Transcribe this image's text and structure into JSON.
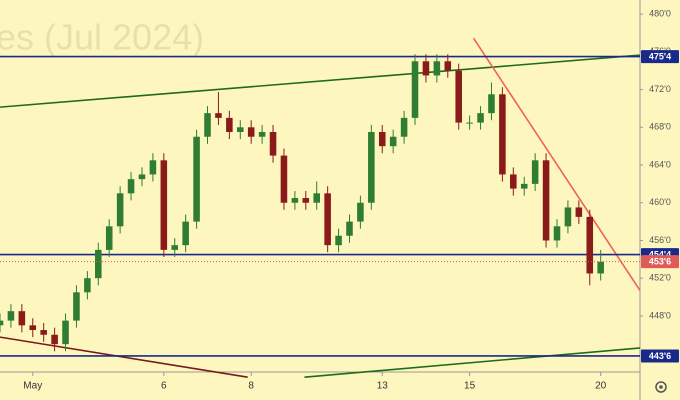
{
  "chart_data": {
    "type": "candlestick",
    "watermark": "es (Jul 2024)",
    "up_color": "#2e7d32",
    "down_color": "#8b1a1a",
    "x": [
      -0.75,
      -0.5,
      -0.25,
      0,
      0.25,
      0.5,
      0.75,
      1,
      1.25,
      1.5,
      1.75,
      2,
      2.25,
      2.5,
      2.75,
      3,
      3.25,
      3.5,
      3.75,
      4,
      4.25,
      4.5,
      4.75,
      5,
      5.25,
      5.5,
      5.75,
      6,
      6.25,
      6.5,
      6.75,
      7,
      7.25,
      7.5,
      7.75,
      8,
      8.25,
      8.5,
      8.75,
      9,
      9.25,
      9.5,
      9.75,
      10,
      10.25,
      10.5,
      10.75,
      11,
      11.25,
      11.5,
      11.75,
      12,
      12.25,
      12.5,
      12.75,
      13
    ],
    "open": [
      447,
      447.5,
      448.5,
      447,
      446.5,
      446,
      445,
      447.5,
      450.5,
      452,
      455,
      457.5,
      461,
      462.5,
      463,
      464.5,
      455,
      455.5,
      458,
      467,
      469.5,
      469,
      467.5,
      468,
      467,
      467.5,
      465,
      460,
      460.5,
      460,
      461,
      455.5,
      456.5,
      458,
      460,
      467.5,
      466,
      467,
      469,
      475,
      473.5,
      475,
      474,
      468.5,
      468.5,
      469.5,
      471.5,
      463,
      461.5,
      462,
      464.5,
      456,
      457.5,
      459.5,
      458.5,
      452.5
    ],
    "high": [
      448.25,
      449.25,
      449.25,
      447.75,
      447.25,
      446.75,
      448.25,
      451.25,
      452.75,
      455.75,
      458.25,
      461.75,
      463.25,
      463.75,
      465.25,
      465.25,
      456.25,
      458.75,
      467.75,
      470.25,
      471.75,
      469.75,
      468.75,
      468.75,
      468.25,
      468.25,
      465.75,
      461.25,
      461.25,
      462.25,
      461.75,
      457.25,
      458.75,
      460.75,
      468.25,
      468.25,
      467.75,
      469.75,
      475.75,
      475.75,
      475.75,
      475.75,
      474.75,
      469.25,
      470.25,
      472.75,
      472.25,
      463.75,
      462.75,
      465.25,
      465.25,
      458.25,
      460.25,
      460.25,
      459.25,
      455
    ],
    "low": [
      446.25,
      446.75,
      446.25,
      445.75,
      445.25,
      444.25,
      444.25,
      446.75,
      449.75,
      451.25,
      454.25,
      456.75,
      460.25,
      461.75,
      462.25,
      454.25,
      454.25,
      454.75,
      457.25,
      466.25,
      468.25,
      466.75,
      466.75,
      466.25,
      466.25,
      464.25,
      459.25,
      459.25,
      459.25,
      459.25,
      454.75,
      454.75,
      455.75,
      457.25,
      459.25,
      465.25,
      465.25,
      466.25,
      468.25,
      472.75,
      472.75,
      473.25,
      467.75,
      467.75,
      467.75,
      468.75,
      462.25,
      460.75,
      460.75,
      461.25,
      455.25,
      455.25,
      456.75,
      457.75,
      451.25,
      451.75
    ],
    "close": [
      447.5,
      448.5,
      447,
      446.5,
      446,
      445,
      447.5,
      450.5,
      452,
      455,
      457.5,
      461,
      462.5,
      463,
      464.5,
      455,
      455.5,
      458,
      467,
      469.5,
      469,
      467.5,
      468,
      467,
      467.5,
      465,
      460,
      460.5,
      460,
      461,
      455.5,
      456.5,
      458,
      460,
      467.5,
      466,
      467,
      469,
      475,
      473.5,
      475,
      474,
      468.5,
      468.5,
      469.5,
      471.5,
      463,
      461.5,
      462,
      464.5,
      456,
      457.5,
      459.5,
      458.5,
      452.5,
      453.75
    ],
    "xlim": [
      -0.75,
      13.9
    ],
    "ylim": [
      442.05,
      481.5
    ],
    "xticks": [
      {
        "value": 0,
        "label": "May"
      },
      {
        "value": 3,
        "label": "6"
      },
      {
        "value": 5,
        "label": "8"
      },
      {
        "value": 8,
        "label": "13"
      },
      {
        "value": 10,
        "label": "15"
      },
      {
        "value": 13,
        "label": "20"
      }
    ],
    "yticks": [
      {
        "value": 480,
        "label": "480'0"
      },
      {
        "value": 476,
        "label": "476'0"
      },
      {
        "value": 472,
        "label": "472'0"
      },
      {
        "value": 468,
        "label": "468'0"
      },
      {
        "value": 464,
        "label": "464'0"
      },
      {
        "value": 460,
        "label": "460'0"
      },
      {
        "value": 456,
        "label": "456'0"
      },
      {
        "value": 452,
        "label": "452'0"
      },
      {
        "value": 448,
        "label": "448'0"
      }
    ],
    "levels": [
      {
        "value": 475.5,
        "label": "475'4",
        "color": "#1a2a8a"
      },
      {
        "value": 454.5,
        "label": "454'4",
        "color": "#1a2a8a"
      },
      {
        "value": 443.75,
        "label": "443'6",
        "color": "#1a2a8a"
      }
    ],
    "last_price": {
      "value": 453.75,
      "label": "453'6",
      "color": "#e05a5a"
    },
    "trendlines": [
      {
        "color": "#1e6b1e",
        "x": [
          -0.75,
          13.9
        ],
        "y": [
          470.14,
          475.65
        ]
      },
      {
        "color": "#f06060",
        "x": [
          10.09,
          13.9
        ],
        "y": [
          477.45,
          450.7
        ]
      },
      {
        "color": "#7a1a1a",
        "x": [
          -0.75,
          4.92
        ],
        "y": [
          445.75,
          441.5
        ]
      },
      {
        "color": "#1e6b1e",
        "x": [
          6.22,
          13.9
        ],
        "y": [
          441.5,
          444.6
        ]
      }
    ]
  }
}
